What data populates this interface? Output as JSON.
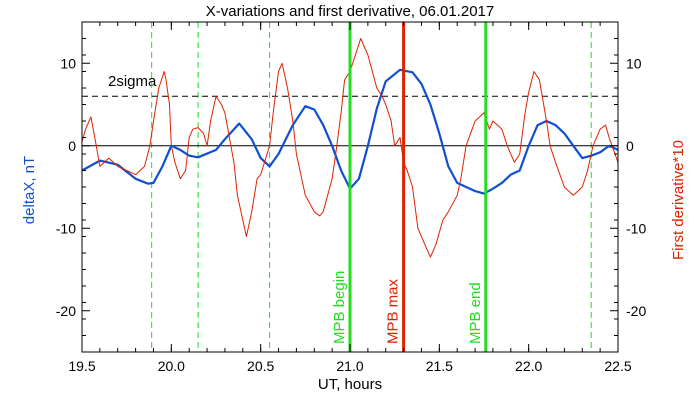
{
  "chart_data": {
    "type": "line",
    "title": "X-variations and first derivative, 06.01.2017",
    "xlabel": "UT, hours",
    "ylabel_left": "deltaX, nT",
    "ylabel_right": "First derivative*10",
    "xlim": [
      19.5,
      22.5
    ],
    "ylim": [
      -25,
      15
    ],
    "xticks": [
      19.5,
      20.0,
      20.5,
      21.0,
      21.5,
      22.0,
      22.5
    ],
    "xtick_labels": [
      "19.5",
      "20.0",
      "20.5",
      "21.0",
      "21.5",
      "22.0",
      "22.5"
    ],
    "yticks": [
      -20,
      -10,
      0,
      10
    ],
    "ytick_labels": [
      "-20",
      "-10",
      "0",
      "10"
    ],
    "grid": false,
    "threshold": {
      "label": "2sigma",
      "value": 6
    },
    "zero_line": 0,
    "vlines_dashed": [
      19.89,
      20.15,
      20.55,
      21.0,
      21.76,
      22.35
    ],
    "markers": [
      {
        "label": "MPB begin",
        "x": 21.0,
        "color": "#22dd22"
      },
      {
        "label": "MPB max",
        "x": 21.3,
        "color": "#dd2200"
      },
      {
        "label": "MPB end",
        "x": 21.76,
        "color": "#22dd22"
      }
    ],
    "series": [
      {
        "color": "#1050d0",
        "x": [
          19.5,
          19.6,
          19.7,
          19.8,
          19.87,
          19.9,
          19.95,
          20.0,
          20.05,
          20.1,
          20.15,
          20.25,
          20.3,
          20.38,
          20.45,
          20.5,
          20.55,
          20.6,
          20.68,
          20.75,
          20.8,
          20.85,
          20.9,
          20.95,
          21.0,
          21.05,
          21.1,
          21.15,
          21.2,
          21.28,
          21.35,
          21.4,
          21.45,
          21.5,
          21.55,
          21.6,
          21.7,
          21.75,
          21.8,
          21.85,
          21.9,
          21.95,
          22.0,
          22.05,
          22.1,
          22.15,
          22.2,
          22.25,
          22.3,
          22.35,
          22.4,
          22.45,
          22.5
        ],
        "values": [
          -3,
          -1.8,
          -2.3,
          -4,
          -4.6,
          -4.5,
          -2.5,
          0,
          -0.5,
          -1.2,
          -1.4,
          -0.5,
          0.8,
          2.7,
          0.8,
          -1.5,
          -2.5,
          -1.0,
          2.5,
          4.8,
          4.4,
          2.5,
          0,
          -3.0,
          -5.2,
          -4.0,
          0,
          4.5,
          7.8,
          9.2,
          8.9,
          7.5,
          5.0,
          1.5,
          -2.5,
          -4.5,
          -5.5,
          -5.8,
          -5.2,
          -4.5,
          -3.5,
          -3.0,
          0,
          2.5,
          3.0,
          2.5,
          1.5,
          0,
          -1.5,
          -1.2,
          -0.8,
          0,
          -0.5
        ]
      },
      {
        "color": "#dd2200",
        "x": [
          19.5,
          19.52,
          19.55,
          19.58,
          19.6,
          19.65,
          19.7,
          19.75,
          19.8,
          19.85,
          19.88,
          19.9,
          19.93,
          19.96,
          19.97,
          19.99,
          20.0,
          20.02,
          20.05,
          20.08,
          20.1,
          20.12,
          20.15,
          20.18,
          20.2,
          20.22,
          20.25,
          20.28,
          20.3,
          20.35,
          20.37,
          20.4,
          20.42,
          20.45,
          20.48,
          20.5,
          20.55,
          20.57,
          20.6,
          20.62,
          20.65,
          20.68,
          20.7,
          20.75,
          20.8,
          20.83,
          20.85,
          20.9,
          20.92,
          20.95,
          20.97,
          21.0,
          21.03,
          21.06,
          21.1,
          21.15,
          21.18,
          21.2,
          21.23,
          21.25,
          21.28,
          21.3,
          21.32,
          21.35,
          21.38,
          21.42,
          21.45,
          21.48,
          21.52,
          21.55,
          21.6,
          21.62,
          21.65,
          21.7,
          21.75,
          21.78,
          21.8,
          21.85,
          21.88,
          21.92,
          21.95,
          21.98,
          22.0,
          22.03,
          22.06,
          22.1,
          22.12,
          22.15,
          22.2,
          22.25,
          22.3,
          22.33,
          22.36,
          22.4,
          22.43,
          22.45,
          22.5
        ],
        "values": [
          0.5,
          2.0,
          3.5,
          0,
          -2.5,
          -1.5,
          -2.5,
          -3.0,
          -3.5,
          -2.5,
          0,
          3,
          7,
          9,
          8,
          5,
          0,
          -2,
          -4,
          -3,
          1,
          2,
          2.2,
          1.5,
          0,
          3,
          6,
          5,
          4,
          -2,
          -6,
          -9,
          -11,
          -8,
          -4,
          -3.5,
          0,
          4,
          9,
          10,
          7,
          3,
          -1,
          -6,
          -8,
          -8.5,
          -8,
          -4,
          -1,
          4,
          8,
          9,
          11,
          13,
          11,
          7,
          6,
          5,
          3,
          0,
          1,
          -2,
          -3,
          -5,
          -10,
          -12,
          -13.5,
          -12,
          -9,
          -8,
          -6,
          -4,
          0,
          3,
          4,
          2,
          3,
          2,
          0,
          -2,
          -1,
          4,
          6.5,
          9,
          8,
          3,
          0,
          -2,
          -5,
          -6,
          -5,
          -3,
          0,
          2,
          2.5,
          1,
          -2
        ]
      }
    ]
  }
}
